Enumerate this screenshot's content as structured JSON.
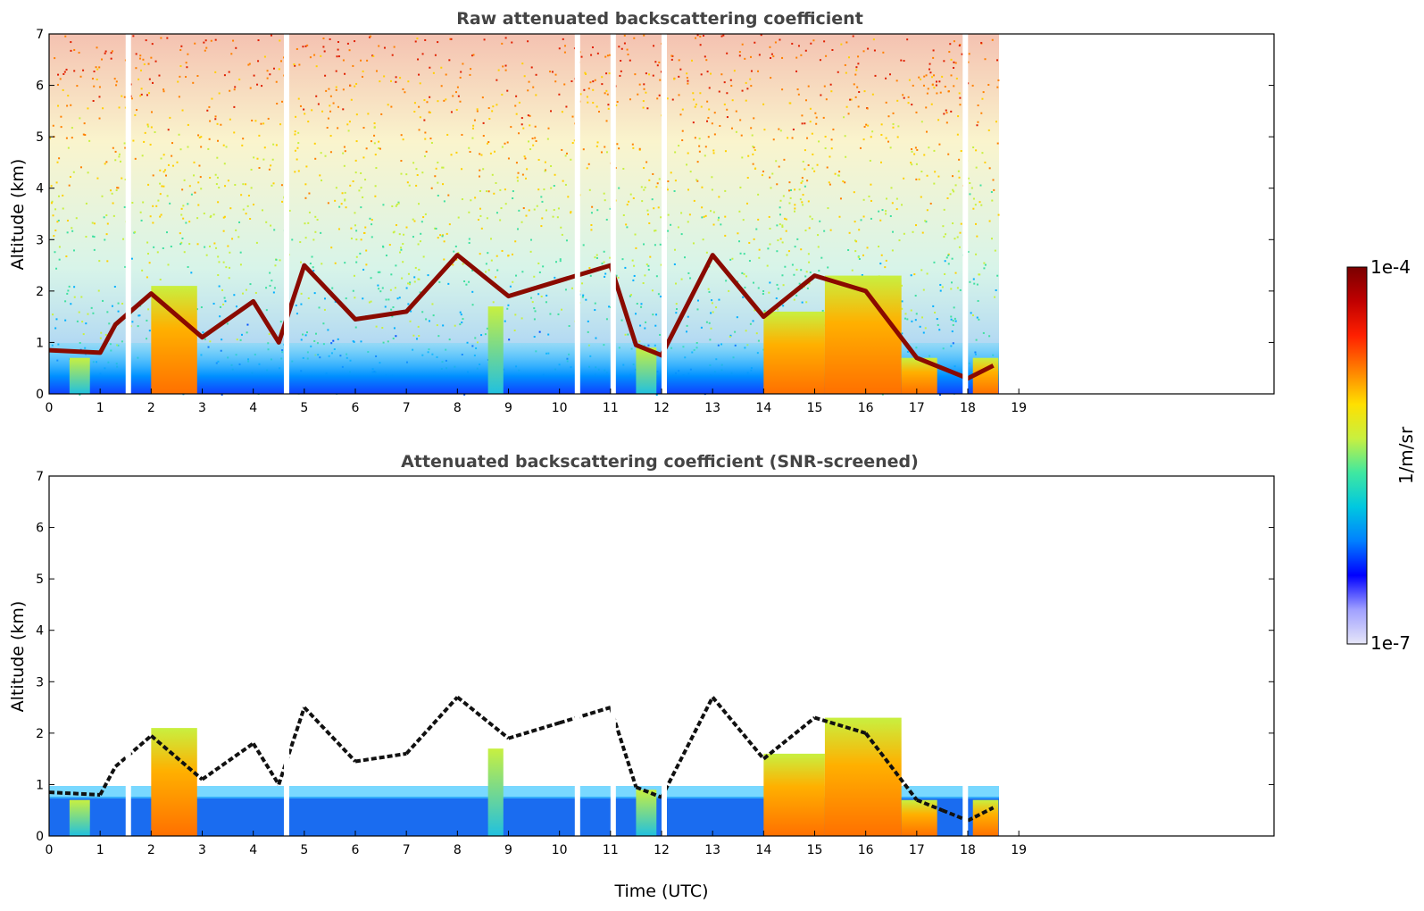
{
  "chart_data": [
    {
      "type": "heatmap",
      "title": "Raw attenuated backscattering coefficient",
      "xlabel": "",
      "ylabel": "Altitude (km)",
      "xlim": [
        0,
        24
      ],
      "ylim": [
        0,
        7
      ],
      "xticks": [
        "0",
        "1",
        "2",
        "3",
        "4",
        "5",
        "6",
        "7",
        "8",
        "9",
        "10",
        "11",
        "12",
        "13",
        "14",
        "15",
        "16",
        "17",
        "18",
        "19"
      ],
      "yticks": [
        "0",
        "1",
        "2",
        "3",
        "4",
        "5",
        "6",
        "7"
      ],
      "data_end_hour": 18.6,
      "cloud_base_km": [
        {
          "t": 0.0,
          "z": 0.85
        },
        {
          "t": 1.0,
          "z": 0.8
        },
        {
          "t": 1.3,
          "z": 1.35
        },
        {
          "t": 2.0,
          "z": 1.95
        },
        {
          "t": 3.0,
          "z": 1.1
        },
        {
          "t": 4.0,
          "z": 1.8
        },
        {
          "t": 4.5,
          "z": 1.0
        },
        {
          "t": 5.0,
          "z": 2.5
        },
        {
          "t": 6.0,
          "z": 1.45
        },
        {
          "t": 7.0,
          "z": 1.6
        },
        {
          "t": 8.0,
          "z": 2.7
        },
        {
          "t": 9.0,
          "z": 1.9
        },
        {
          "t": 10.0,
          "z": 2.2
        },
        {
          "t": 11.0,
          "z": 2.5
        },
        {
          "t": 11.5,
          "z": 0.95
        },
        {
          "t": 12.0,
          "z": 0.75
        },
        {
          "t": 13.0,
          "z": 2.7
        },
        {
          "t": 14.0,
          "z": 1.5
        },
        {
          "t": 15.0,
          "z": 2.3
        },
        {
          "t": 16.0,
          "z": 2.0
        },
        {
          "t": 17.0,
          "z": 0.7
        },
        {
          "t": 17.5,
          "z": 0.5
        },
        {
          "t": 18.0,
          "z": 0.3
        },
        {
          "t": 18.5,
          "z": 0.55
        }
      ]
    },
    {
      "type": "heatmap",
      "title": "Attenuated backscattering coefficient (SNR-screened)",
      "xlabel": "Time (UTC)",
      "ylabel": "Altitude (km)",
      "xlim": [
        0,
        24
      ],
      "ylim": [
        0,
        7
      ],
      "xticks": [
        "0",
        "1",
        "2",
        "3",
        "4",
        "5",
        "6",
        "7",
        "8",
        "9",
        "10",
        "11",
        "12",
        "13",
        "14",
        "15",
        "16",
        "17",
        "18",
        "19"
      ],
      "yticks": [
        "0",
        "1",
        "2",
        "3",
        "4",
        "5",
        "6",
        "7"
      ],
      "data_end_hour": 18.6
    }
  ],
  "colorbar": {
    "max_label": "1e-4",
    "min_label": "1e-7",
    "unit_label": "1/m/sr",
    "colors": [
      "#e6e6f8",
      "#a0a0ff",
      "#0000ff",
      "#0080ff",
      "#00c8e0",
      "#40e8a0",
      "#c8f040",
      "#ffe000",
      "#ff8000",
      "#ff2000",
      "#c00000",
      "#7a0000"
    ]
  }
}
